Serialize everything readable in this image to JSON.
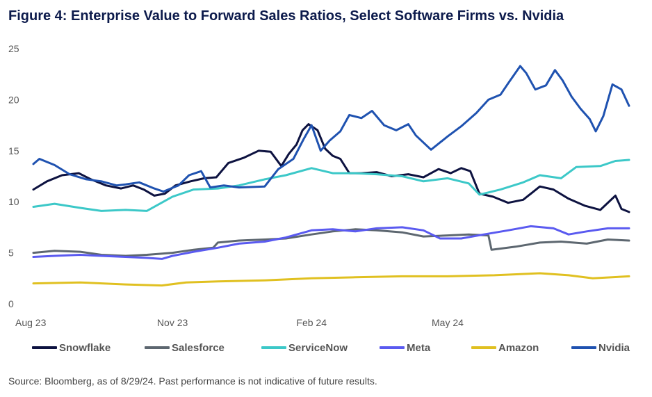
{
  "title": "Figure 4: Enterprise Value to Forward Sales Ratios, Select Software Firms vs. Nvidia",
  "source": "Source: Bloomberg, as of 8/29/24. Past performance is not indicative of future results.",
  "chart_data": {
    "type": "line",
    "title": "Figure 4: Enterprise Value to Forward Sales Ratios, Select Software Firms vs. Nvidia",
    "xlabel": "",
    "ylabel": "",
    "ylim": [
      0,
      25
    ],
    "yticks": [
      0,
      5,
      10,
      15,
      20,
      25
    ],
    "xlim": [
      "2023-08-01",
      "2024-08-29"
    ],
    "xticks": [
      {
        "date": "2023-08-01",
        "label": "Aug 23"
      },
      {
        "date": "2023-11-01",
        "label": "Nov 23"
      },
      {
        "date": "2024-02-01",
        "label": "Feb 24"
      },
      {
        "date": "2024-05-01",
        "label": "May 24"
      }
    ],
    "grid": false,
    "legend_position": "bottom",
    "series": [
      {
        "name": "Snowflake",
        "color": "#0d1240",
        "points": [
          [
            "2023-08-01",
            11.2
          ],
          [
            "2023-08-10",
            12.0
          ],
          [
            "2023-08-20",
            12.6
          ],
          [
            "2023-08-31",
            12.8
          ],
          [
            "2023-09-08",
            12.2
          ],
          [
            "2023-09-18",
            11.6
          ],
          [
            "2023-09-28",
            11.3
          ],
          [
            "2023-10-06",
            11.6
          ],
          [
            "2023-10-13",
            11.2
          ],
          [
            "2023-10-20",
            10.6
          ],
          [
            "2023-10-27",
            10.8
          ],
          [
            "2023-11-03",
            11.6
          ],
          [
            "2023-11-13",
            12.0
          ],
          [
            "2023-11-22",
            12.3
          ],
          [
            "2023-11-30",
            12.4
          ],
          [
            "2023-12-08",
            13.8
          ],
          [
            "2023-12-18",
            14.3
          ],
          [
            "2023-12-28",
            15.0
          ],
          [
            "2024-01-05",
            14.9
          ],
          [
            "2024-01-12",
            13.5
          ],
          [
            "2024-01-17",
            14.7
          ],
          [
            "2024-01-22",
            15.6
          ],
          [
            "2024-01-26",
            17.0
          ],
          [
            "2024-01-30",
            17.6
          ],
          [
            "2024-02-05",
            17.0
          ],
          [
            "2024-02-10",
            15.2
          ],
          [
            "2024-02-15",
            14.5
          ],
          [
            "2024-02-20",
            14.2
          ],
          [
            "2024-02-26",
            12.8
          ],
          [
            "2024-03-05",
            12.8
          ],
          [
            "2024-03-15",
            12.9
          ],
          [
            "2024-03-25",
            12.5
          ],
          [
            "2024-04-05",
            12.7
          ],
          [
            "2024-04-15",
            12.4
          ],
          [
            "2024-04-25",
            13.2
          ],
          [
            "2024-05-03",
            12.8
          ],
          [
            "2024-05-10",
            13.3
          ],
          [
            "2024-05-16",
            13.0
          ],
          [
            "2024-05-22",
            10.8
          ],
          [
            "2024-05-31",
            10.5
          ],
          [
            "2024-06-10",
            9.9
          ],
          [
            "2024-06-20",
            10.2
          ],
          [
            "2024-07-01",
            11.5
          ],
          [
            "2024-07-10",
            11.2
          ],
          [
            "2024-07-20",
            10.3
          ],
          [
            "2024-07-31",
            9.6
          ],
          [
            "2024-08-10",
            9.2
          ],
          [
            "2024-08-20",
            10.6
          ],
          [
            "2024-08-24",
            9.3
          ],
          [
            "2024-08-29",
            9.0
          ]
        ]
      },
      {
        "name": "Salesforce",
        "color": "#5d6770",
        "points": [
          [
            "2023-08-01",
            5.0
          ],
          [
            "2023-08-15",
            5.2
          ],
          [
            "2023-09-01",
            5.1
          ],
          [
            "2023-09-15",
            4.8
          ],
          [
            "2023-10-01",
            4.7
          ],
          [
            "2023-10-15",
            4.8
          ],
          [
            "2023-11-01",
            5.0
          ],
          [
            "2023-11-15",
            5.3
          ],
          [
            "2023-11-28",
            5.5
          ],
          [
            "2023-12-01",
            6.0
          ],
          [
            "2023-12-15",
            6.2
          ],
          [
            "2024-01-01",
            6.3
          ],
          [
            "2024-01-15",
            6.4
          ],
          [
            "2024-02-01",
            6.8
          ],
          [
            "2024-02-15",
            7.1
          ],
          [
            "2024-03-01",
            7.3
          ],
          [
            "2024-03-15",
            7.2
          ],
          [
            "2024-04-01",
            7.0
          ],
          [
            "2024-04-15",
            6.6
          ],
          [
            "2024-05-01",
            6.7
          ],
          [
            "2024-05-15",
            6.8
          ],
          [
            "2024-05-28",
            6.7
          ],
          [
            "2024-05-30",
            5.3
          ],
          [
            "2024-06-15",
            5.6
          ],
          [
            "2024-07-01",
            6.0
          ],
          [
            "2024-07-15",
            6.1
          ],
          [
            "2024-08-01",
            5.9
          ],
          [
            "2024-08-15",
            6.3
          ],
          [
            "2024-08-29",
            6.2
          ]
        ]
      },
      {
        "name": "ServiceNow",
        "color": "#3cc8c8",
        "points": [
          [
            "2023-08-01",
            9.5
          ],
          [
            "2023-08-15",
            9.8
          ],
          [
            "2023-09-01",
            9.4
          ],
          [
            "2023-09-15",
            9.1
          ],
          [
            "2023-10-01",
            9.2
          ],
          [
            "2023-10-15",
            9.1
          ],
          [
            "2023-11-01",
            10.5
          ],
          [
            "2023-11-15",
            11.2
          ],
          [
            "2023-12-01",
            11.3
          ],
          [
            "2023-12-15",
            11.6
          ],
          [
            "2024-01-01",
            12.2
          ],
          [
            "2024-01-15",
            12.6
          ],
          [
            "2024-02-01",
            13.3
          ],
          [
            "2024-02-15",
            12.8
          ],
          [
            "2024-03-01",
            12.8
          ],
          [
            "2024-03-15",
            12.7
          ],
          [
            "2024-04-01",
            12.5
          ],
          [
            "2024-04-15",
            12.0
          ],
          [
            "2024-05-01",
            12.3
          ],
          [
            "2024-05-15",
            11.8
          ],
          [
            "2024-05-22",
            10.7
          ],
          [
            "2024-06-05",
            11.2
          ],
          [
            "2024-06-20",
            11.9
          ],
          [
            "2024-07-01",
            12.6
          ],
          [
            "2024-07-15",
            12.3
          ],
          [
            "2024-07-25",
            13.4
          ],
          [
            "2024-08-10",
            13.5
          ],
          [
            "2024-08-20",
            14.0
          ],
          [
            "2024-08-29",
            14.1
          ]
        ]
      },
      {
        "name": "Meta",
        "color": "#5a5af0",
        "points": [
          [
            "2023-08-01",
            4.6
          ],
          [
            "2023-08-15",
            4.7
          ],
          [
            "2023-09-01",
            4.8
          ],
          [
            "2023-09-15",
            4.7
          ],
          [
            "2023-10-01",
            4.6
          ],
          [
            "2023-10-15",
            4.5
          ],
          [
            "2023-10-25",
            4.4
          ],
          [
            "2023-11-01",
            4.7
          ],
          [
            "2023-11-15",
            5.1
          ],
          [
            "2023-12-01",
            5.5
          ],
          [
            "2023-12-15",
            5.9
          ],
          [
            "2024-01-01",
            6.1
          ],
          [
            "2024-01-15",
            6.5
          ],
          [
            "2024-02-01",
            7.2
          ],
          [
            "2024-02-15",
            7.3
          ],
          [
            "2024-03-01",
            7.1
          ],
          [
            "2024-03-15",
            7.4
          ],
          [
            "2024-04-01",
            7.5
          ],
          [
            "2024-04-15",
            7.2
          ],
          [
            "2024-04-26",
            6.4
          ],
          [
            "2024-05-10",
            6.4
          ],
          [
            "2024-05-25",
            6.8
          ],
          [
            "2024-06-10",
            7.2
          ],
          [
            "2024-06-25",
            7.6
          ],
          [
            "2024-07-10",
            7.4
          ],
          [
            "2024-07-20",
            6.8
          ],
          [
            "2024-08-01",
            7.1
          ],
          [
            "2024-08-15",
            7.4
          ],
          [
            "2024-08-29",
            7.4
          ]
        ]
      },
      {
        "name": "Amazon",
        "color": "#e0c020",
        "points": [
          [
            "2023-08-01",
            2.0
          ],
          [
            "2023-09-01",
            2.1
          ],
          [
            "2023-10-01",
            1.9
          ],
          [
            "2023-10-25",
            1.8
          ],
          [
            "2023-11-10",
            2.1
          ],
          [
            "2023-12-01",
            2.2
          ],
          [
            "2024-01-01",
            2.3
          ],
          [
            "2024-02-01",
            2.5
          ],
          [
            "2024-03-01",
            2.6
          ],
          [
            "2024-04-01",
            2.7
          ],
          [
            "2024-05-01",
            2.7
          ],
          [
            "2024-06-01",
            2.8
          ],
          [
            "2024-07-01",
            3.0
          ],
          [
            "2024-07-20",
            2.8
          ],
          [
            "2024-08-05",
            2.5
          ],
          [
            "2024-08-29",
            2.7
          ]
        ]
      },
      {
        "name": "Nvidia",
        "color": "#1f52b0",
        "points": [
          [
            "2023-08-01",
            13.7
          ],
          [
            "2023-08-05",
            14.2
          ],
          [
            "2023-08-15",
            13.6
          ],
          [
            "2023-08-25",
            12.7
          ],
          [
            "2023-09-05",
            12.2
          ],
          [
            "2023-09-15",
            12.0
          ],
          [
            "2023-09-25",
            11.6
          ],
          [
            "2023-10-01",
            11.7
          ],
          [
            "2023-10-10",
            11.9
          ],
          [
            "2023-10-20",
            11.3
          ],
          [
            "2023-10-26",
            11.0
          ],
          [
            "2023-11-05",
            11.6
          ],
          [
            "2023-11-12",
            12.6
          ],
          [
            "2023-11-20",
            13.0
          ],
          [
            "2023-11-26",
            11.4
          ],
          [
            "2023-12-05",
            11.6
          ],
          [
            "2023-12-15",
            11.4
          ],
          [
            "2024-01-01",
            11.5
          ],
          [
            "2024-01-10",
            13.2
          ],
          [
            "2024-01-20",
            14.2
          ],
          [
            "2024-01-27",
            16.2
          ],
          [
            "2024-02-01",
            17.5
          ],
          [
            "2024-02-07",
            15.0
          ],
          [
            "2024-02-13",
            16.0
          ],
          [
            "2024-02-20",
            16.9
          ],
          [
            "2024-02-26",
            18.5
          ],
          [
            "2024-03-05",
            18.2
          ],
          [
            "2024-03-12",
            18.9
          ],
          [
            "2024-03-20",
            17.5
          ],
          [
            "2024-03-28",
            17.0
          ],
          [
            "2024-04-05",
            17.6
          ],
          [
            "2024-04-10",
            16.5
          ],
          [
            "2024-04-20",
            15.1
          ],
          [
            "2024-05-01",
            16.4
          ],
          [
            "2024-05-10",
            17.4
          ],
          [
            "2024-05-20",
            18.7
          ],
          [
            "2024-05-28",
            20.0
          ],
          [
            "2024-06-05",
            20.5
          ],
          [
            "2024-06-10",
            21.6
          ],
          [
            "2024-06-18",
            23.3
          ],
          [
            "2024-06-22",
            22.6
          ],
          [
            "2024-06-28",
            21.0
          ],
          [
            "2024-07-05",
            21.4
          ],
          [
            "2024-07-11",
            22.9
          ],
          [
            "2024-07-16",
            21.9
          ],
          [
            "2024-07-22",
            20.3
          ],
          [
            "2024-07-28",
            19.1
          ],
          [
            "2024-08-03",
            18.1
          ],
          [
            "2024-08-07",
            16.9
          ],
          [
            "2024-08-12",
            18.4
          ],
          [
            "2024-08-18",
            21.5
          ],
          [
            "2024-08-24",
            21.0
          ],
          [
            "2024-08-29",
            19.4
          ]
        ]
      }
    ]
  }
}
